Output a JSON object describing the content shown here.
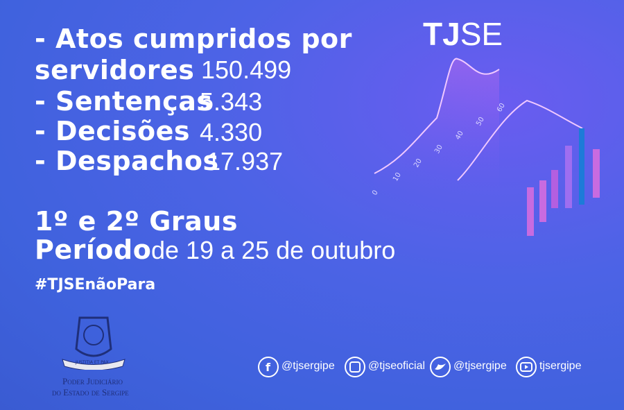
{
  "brand": {
    "bold": "TJ",
    "light": "SE"
  },
  "stats": [
    {
      "label_lines": [
        "- Atos cumpridos por",
        "servidores"
      ],
      "value": "150.499"
    },
    {
      "label_lines": [
        "- Sentenças"
      ],
      "value": "5.343"
    },
    {
      "label_lines": [
        "- Decisões"
      ],
      "value": "4.330"
    },
    {
      "label_lines": [
        "- Despachos"
      ],
      "value": "17.937"
    }
  ],
  "scope": "1º e 2º Graus",
  "period": {
    "label": "Período",
    "value": "de 19 a 25 de outubro"
  },
  "hashtag": "#TJSEnãoPara",
  "emblem": {
    "motto": "JUSTITIA ET PAX",
    "line1": "Poder Judiciário",
    "line2": "do Estado de Sergipe"
  },
  "decor_ticks": [
    "0",
    "10",
    "20",
    "30",
    "40",
    "50",
    "60"
  ],
  "social": [
    "@tjsergipe",
    "@tjseoficial",
    "@tjsergipe",
    "tjsergipe"
  ]
}
